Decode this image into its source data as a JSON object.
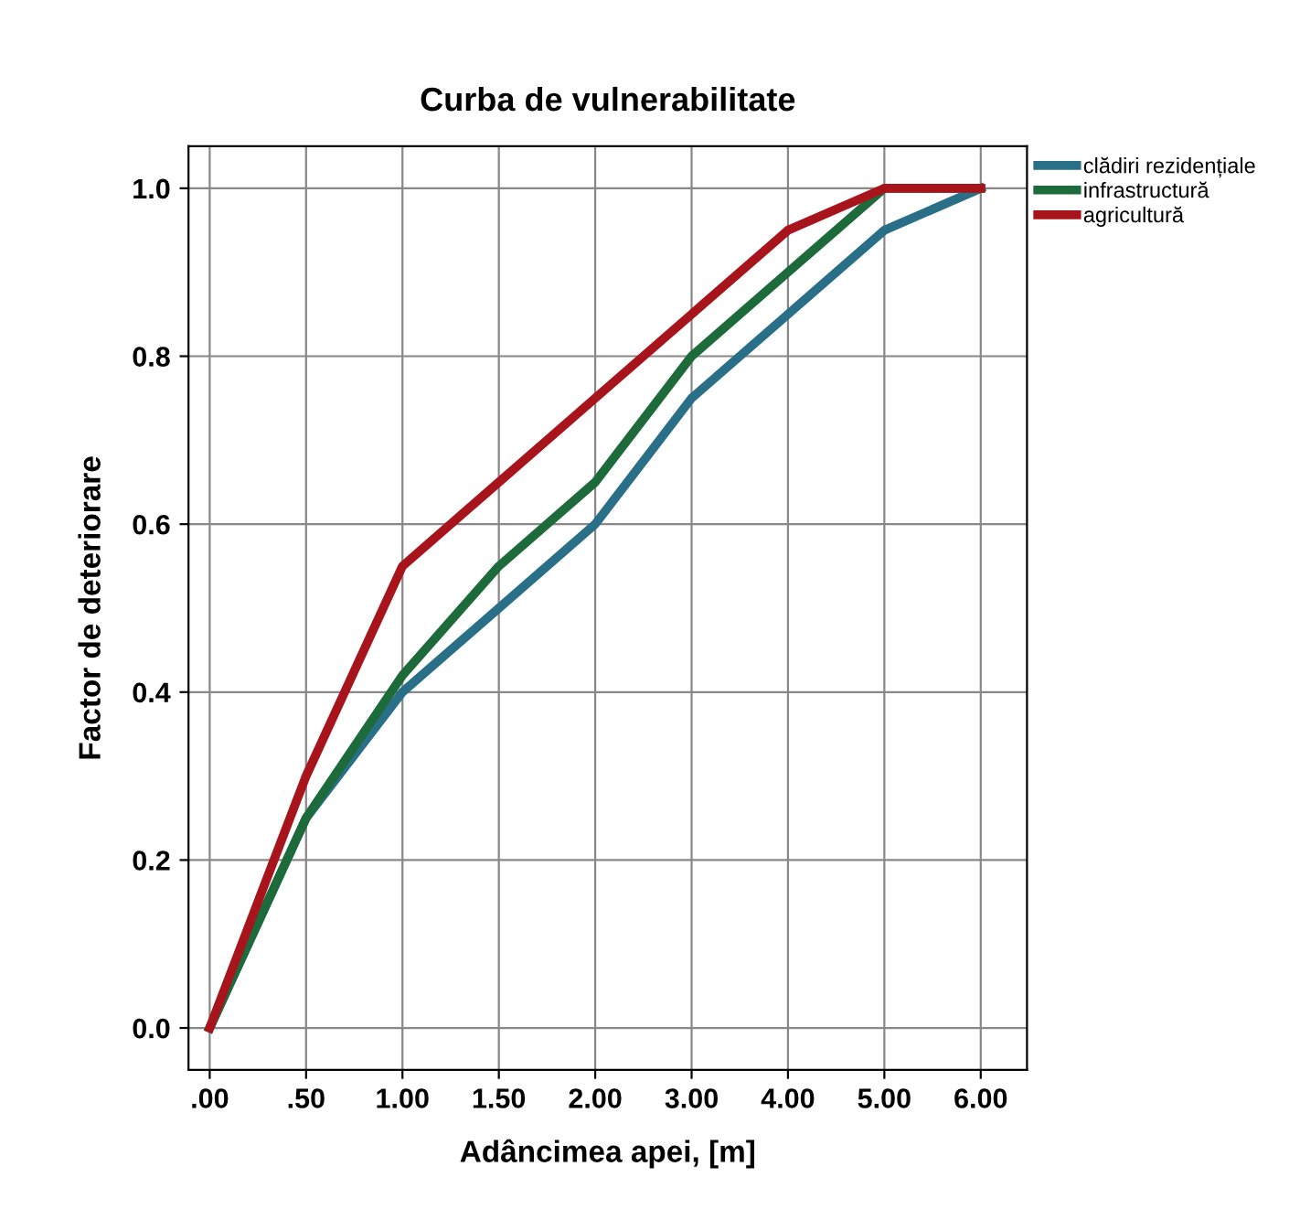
{
  "chart_data": {
    "type": "line",
    "title": "Curba de vulnerabilitate",
    "xlabel": "Adâncimea apei, [m]",
    "ylabel": "Factor de deteriorare",
    "categories": [
      ".00",
      ".50",
      "1.00",
      "1.50",
      "2.00",
      "3.00",
      "4.00",
      "5.00",
      "6.00"
    ],
    "series": [
      {
        "name": "clădiri rezidențiale",
        "color": "#2a6f88",
        "values": [
          0,
          0.25,
          0.4,
          0.5,
          0.6,
          0.75,
          0.85,
          0.95,
          1.0
        ]
      },
      {
        "name": "infrastructură",
        "color": "#1d6a3a",
        "values": [
          0,
          0.25,
          0.42,
          0.55,
          0.65,
          0.8,
          0.9,
          1.0,
          1.0
        ]
      },
      {
        "name": "agricultură",
        "color": "#a8141b",
        "values": [
          0,
          0.3,
          0.55,
          0.65,
          0.75,
          0.85,
          0.95,
          1.0,
          1.0
        ]
      }
    ],
    "ylim": [
      -0.05,
      1.05
    ],
    "yticks": [
      {
        "value": 0,
        "label": "0.0"
      },
      0.2,
      0.4,
      0.6,
      0.8,
      {
        "value": 1,
        "label": "1.0"
      }
    ],
    "grid": true,
    "legend": "top right",
    "marker": "none",
    "line_style": "solid"
  }
}
